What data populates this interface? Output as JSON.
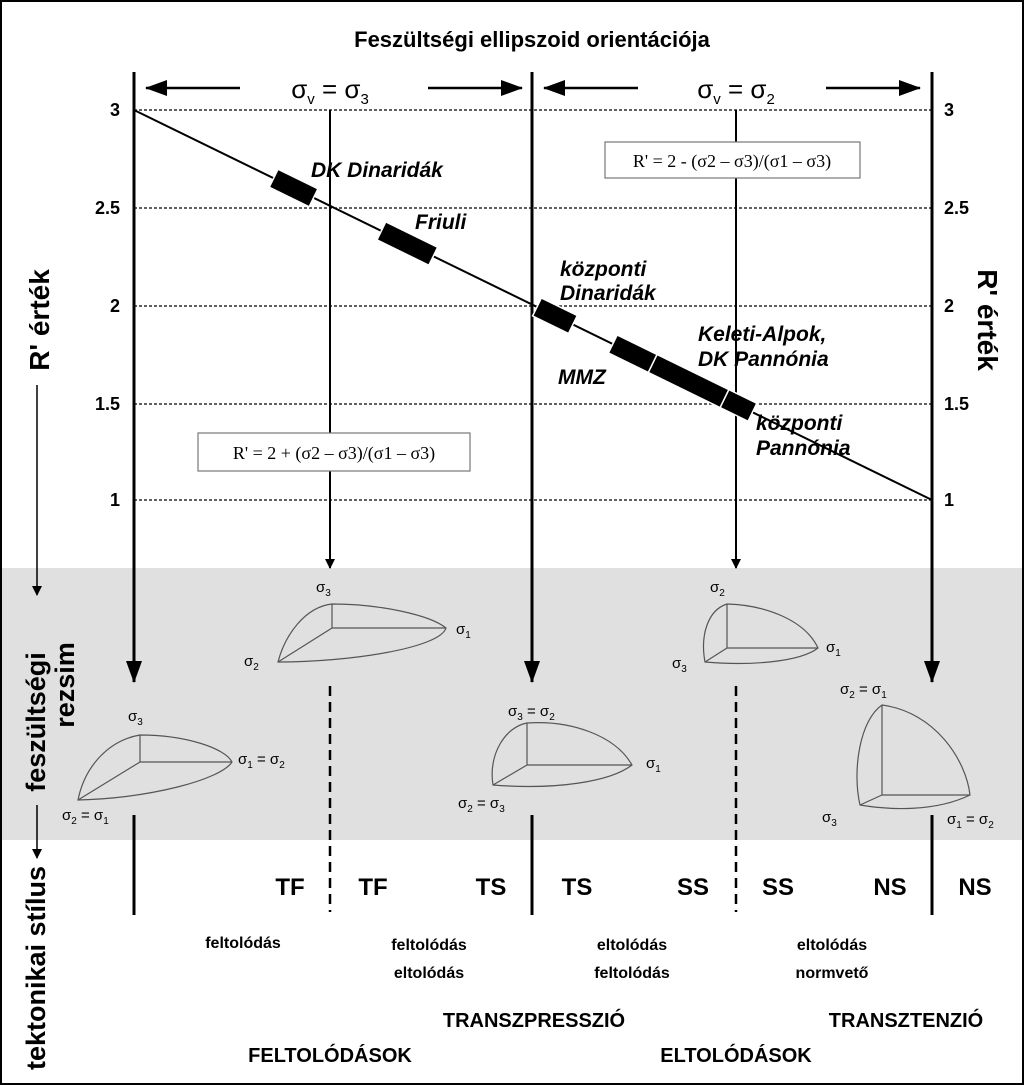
{
  "title": "Feszültségi ellipszoid orientációja",
  "top_labels": {
    "left_base": "σ",
    "left_sub": "v",
    "left_eq": " = σ",
    "left_eq_sub": "3",
    "right_base": "σ",
    "right_sub": "v",
    "right_eq": " = σ",
    "right_eq_sub": "2"
  },
  "y_axis": {
    "label": "R' érték",
    "ticks": [
      "3",
      "2.5",
      "2",
      "1.5",
      "1"
    ]
  },
  "chart_data": {
    "type": "line",
    "x_units": "stress regime",
    "y_range": [
      1,
      3
    ],
    "line": [
      {
        "x": "compression",
        "y": 3
      },
      {
        "x": "extension",
        "y": 1
      }
    ],
    "segments": [
      {
        "name": "DK Dinaridák",
        "y_from": 2.65,
        "y_to": 2.55
      },
      {
        "name": "Friuli",
        "y_from": 2.38,
        "y_to": 2.25
      },
      {
        "name": "központi Dinaridák",
        "y_from": 1.99,
        "y_to": 1.9
      },
      {
        "name": "MMZ",
        "y_from": 1.8,
        "y_to": 1.7
      },
      {
        "name": "Keleti-Alpok, DK Pannónia",
        "y_from": 1.7,
        "y_to": 1.52
      },
      {
        "name": "központi Pannónia",
        "y_from": 1.52,
        "y_to": 1.45
      }
    ]
  },
  "formulas": {
    "right": "R' = 2 - (σ2 – σ3)/(σ1 – σ3)",
    "left": "R' = 2 + (σ2 – σ3)/(σ1 – σ3)"
  },
  "regions": [
    {
      "name": "DK Dinaridák"
    },
    {
      "name": "Friuli"
    },
    {
      "name_line1": "központi",
      "name_line2": "Dinaridák"
    },
    {
      "name": "MMZ"
    },
    {
      "name_line1": "Keleti-Alpok,",
      "name_line2": "DK Pannónia"
    },
    {
      "name_line1": "központi",
      "name_line2": "Pannónia"
    }
  ],
  "side_labels": {
    "regime_line1": "feszültségi",
    "regime_line2": "rezsim",
    "style": "tektonikai stílus"
  },
  "ellipsoids": {
    "e1": {
      "top": "σ",
      "top_sub": "3",
      "right": "σ",
      "right_sub": "1",
      "right_eq": " = σ",
      "right_eq_sub": "2",
      "bottom": "σ",
      "bottom_sub": "2",
      "bottom_eq": " = σ",
      "bottom_eq_sub": "1"
    },
    "e2": {
      "top": "σ",
      "top_sub": "3",
      "right": "σ",
      "right_sub": "1",
      "left": "σ",
      "left_sub": "2"
    },
    "e3": {
      "top": "σ",
      "top_sub": "3",
      "top_eq": " = σ",
      "top_eq_sub": "2",
      "right": "σ",
      "right_sub": "1",
      "bottom": "σ",
      "bottom_sub": "2",
      "bottom_eq": " = σ",
      "bottom_eq_sub": "3"
    },
    "e4": {
      "top": "σ",
      "top_sub": "2",
      "right": "σ",
      "right_sub": "1",
      "left": "σ",
      "left_sub": "3"
    },
    "e5": {
      "top": "σ",
      "top_sub": "2",
      "top_eq": " = σ",
      "top_eq_sub": "1",
      "bottom_left": "σ",
      "bottom_left_sub": "3",
      "right": "σ",
      "right_sub": "1",
      "right_eq": " = σ",
      "right_eq_sub": "2"
    }
  },
  "style_codes": [
    "TF",
    "TF",
    "TS",
    "TS",
    "SS",
    "SS",
    "NS",
    "NS"
  ],
  "faulting": [
    {
      "line1": "feltolódás"
    },
    {
      "line1": "feltolódás",
      "line2": "eltolódás"
    },
    {
      "line1": "eltolódás",
      "line2": "feltolódás"
    },
    {
      "line1": "eltolódás",
      "line2": "normvető"
    }
  ],
  "regime_names": {
    "transpression": "TRANSZPRESSZIÓ",
    "transtension": "TRANSZTENZIÓ",
    "thrusts": "FELTOLÓDÁSOK",
    "strikeslips": "ELTOLÓDÁSOK"
  }
}
